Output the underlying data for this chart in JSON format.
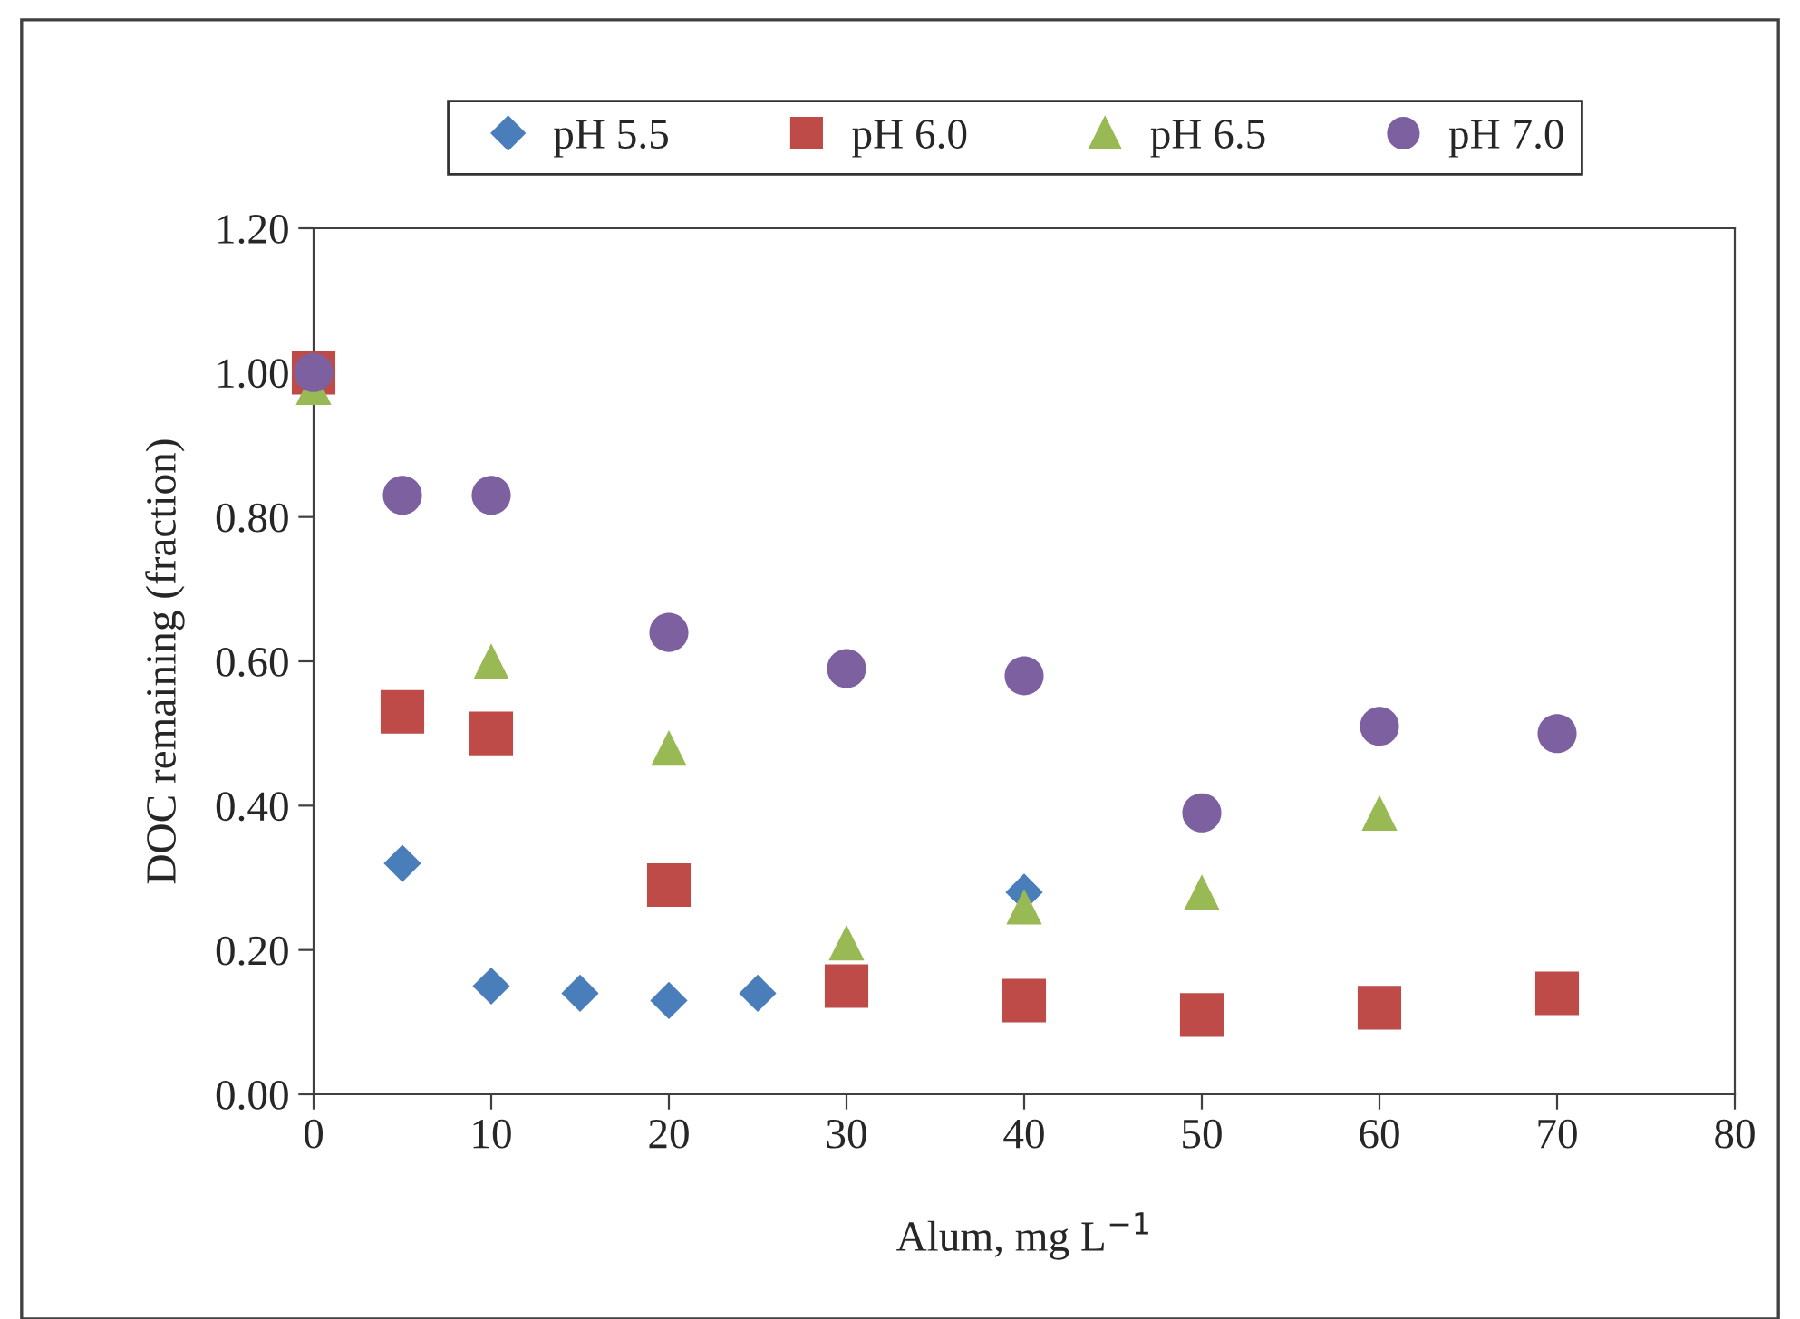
{
  "chart_data": {
    "type": "scatter",
    "xlabel": "Alum, mg L$^{−1}$",
    "ylabel": "DOC remaining (fraction)",
    "xlim": [
      0,
      80
    ],
    "xticks": [
      0,
      10,
      20,
      30,
      40,
      50,
      60,
      70,
      80
    ],
    "ylim": [
      0,
      1.2
    ],
    "yticks": [
      {
        "value": 0,
        "label": "0.00"
      },
      {
        "value": 0.2,
        "label": "0.20"
      },
      {
        "value": 0.4,
        "label": "0.40"
      },
      {
        "value": 0.6,
        "label": "0.60"
      },
      {
        "value": 0.8,
        "label": "0.80"
      },
      {
        "value": 1.0,
        "label": "1.00"
      },
      {
        "value": 1.2,
        "label": "1.20"
      }
    ],
    "grid": false,
    "legend": "top",
    "series": [
      {
        "name": "pH 5.5",
        "color": "#4a7ebb",
        "marker": "diamond",
        "x": [
          5,
          10,
          15,
          20,
          25,
          40
        ],
        "values": [
          0.32,
          0.15,
          0.14,
          0.13,
          0.14,
          0.28
        ]
      },
      {
        "name": "pH 6.0",
        "color": "#be4b48",
        "marker": "square",
        "x": [
          0,
          5,
          10,
          20,
          30,
          40,
          50,
          60,
          70
        ],
        "values": [
          1.0,
          0.53,
          0.5,
          0.29,
          0.15,
          0.13,
          0.11,
          0.12,
          0.14
        ]
      },
      {
        "name": "pH 6.5",
        "color": "#98b954",
        "marker": "triangle",
        "x": [
          0,
          10,
          20,
          30,
          40,
          50,
          60
        ],
        "values": [
          0.98,
          0.6,
          0.48,
          0.21,
          0.26,
          0.28,
          0.39
        ]
      },
      {
        "name": "pH 7.0",
        "color": "#7d60a0",
        "marker": "circle",
        "x": [
          0,
          5,
          10,
          20,
          30,
          40,
          50,
          60,
          70
        ],
        "values": [
          1.0,
          0.83,
          0.83,
          0.64,
          0.59,
          0.58,
          0.39,
          0.51,
          0.5
        ]
      }
    ]
  }
}
